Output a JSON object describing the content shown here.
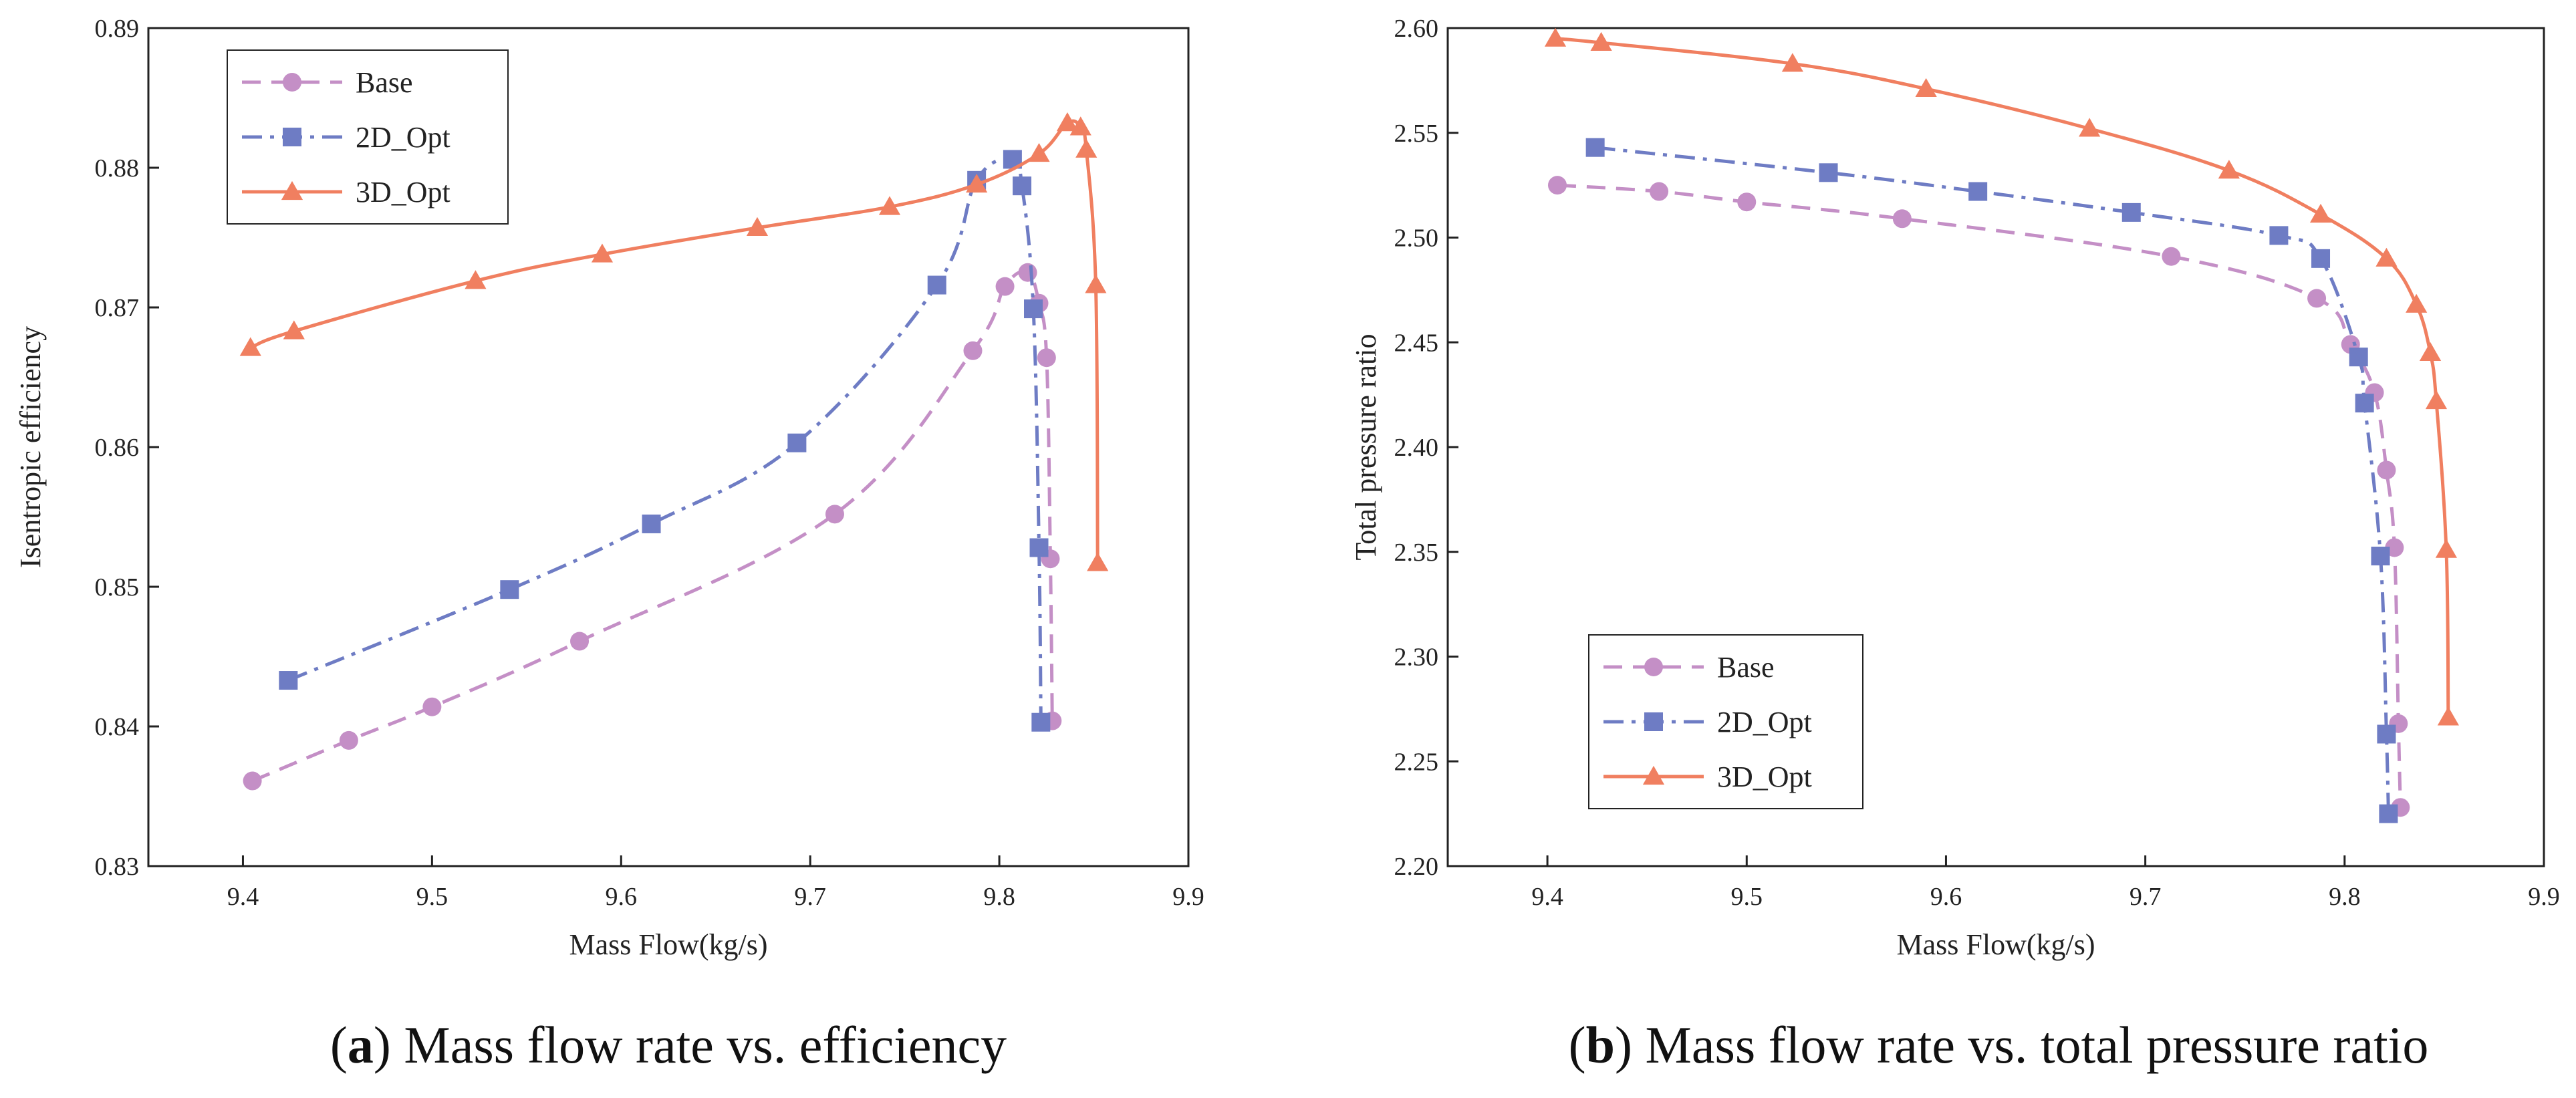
{
  "chart_data": [
    {
      "type": "line",
      "caption_letter": "a",
      "caption_open": "(",
      "caption_close": ")",
      "caption_text": " Mass flow rate vs. efficiency",
      "xlabel": "Mass Flow(kg/s)",
      "ylabel": "Isentropic efficiency",
      "xlim": [
        9.35,
        9.9
      ],
      "ylim": [
        0.83,
        0.89
      ],
      "x_ticks": [
        "9.4",
        "9.5",
        "9.6",
        "9.7",
        "9.8",
        "9.9"
      ],
      "y_ticks": [
        "0.83",
        "0.84",
        "0.85",
        "0.86",
        "0.87",
        "0.88",
        "0.89"
      ],
      "legend_position": "top-left",
      "series": [
        {
          "name": "Base",
          "color": "#c48fc6",
          "marker": "circle",
          "dash": "dashed",
          "x": [
            9.405,
            9.456,
            9.5,
            9.578,
            9.713,
            9.786,
            9.803,
            9.815,
            9.821,
            9.825,
            9.827,
            9.828
          ],
          "y": [
            0.8361,
            0.839,
            0.8414,
            0.8461,
            0.8552,
            0.8669,
            0.8715,
            0.8725,
            0.8703,
            0.8664,
            0.852,
            0.8404
          ]
        },
        {
          "name": "2D_Opt",
          "color": "#6e7cc4",
          "marker": "square",
          "dash": "dashdot",
          "x": [
            9.424,
            9.541,
            9.616,
            9.693,
            9.767,
            9.788,
            9.807,
            9.812,
            9.818,
            9.821,
            9.822
          ],
          "y": [
            0.8433,
            0.8498,
            0.8545,
            0.8603,
            0.8716,
            0.8791,
            0.8806,
            0.8787,
            0.8699,
            0.8528,
            0.8403
          ]
        },
        {
          "name": "3D_Opt",
          "color": "#f07f60",
          "marker": "triangle",
          "dash": "solid",
          "x": [
            9.404,
            9.427,
            9.523,
            9.59,
            9.672,
            9.742,
            9.788,
            9.821,
            9.836,
            9.843,
            9.846,
            9.851,
            9.852
          ],
          "y": [
            0.8671,
            0.8683,
            0.8719,
            0.8738,
            0.8757,
            0.8772,
            0.8788,
            0.881,
            0.8832,
            0.8829,
            0.8813,
            0.8716,
            0.8517
          ]
        }
      ]
    },
    {
      "type": "line",
      "caption_letter": "b",
      "caption_open": "(",
      "caption_close": ")",
      "caption_text": " Mass flow rate vs. total pressure ratio",
      "xlabel": "Mass Flow(kg/s)",
      "ylabel": "Total pressure ratio",
      "xlim": [
        9.35,
        9.9
      ],
      "ylim": [
        2.2,
        2.6
      ],
      "x_ticks": [
        "9.4",
        "9.5",
        "9.6",
        "9.7",
        "9.8",
        "9.9"
      ],
      "y_ticks": [
        "2.20",
        "2.25",
        "2.30",
        "2.35",
        "2.40",
        "2.45",
        "2.50",
        "2.55",
        "2.60"
      ],
      "legend_position": "bottom-left",
      "series": [
        {
          "name": "Base",
          "color": "#c48fc6",
          "marker": "circle",
          "dash": "dashed",
          "x": [
            9.405,
            9.456,
            9.5,
            9.578,
            9.713,
            9.786,
            9.803,
            9.815,
            9.821,
            9.825,
            9.827,
            9.828
          ],
          "y": [
            2.525,
            2.522,
            2.517,
            2.509,
            2.491,
            2.471,
            2.449,
            2.426,
            2.389,
            2.352,
            2.268,
            2.228
          ]
        },
        {
          "name": "2D_Opt",
          "color": "#6e7cc4",
          "marker": "square",
          "dash": "dashdot",
          "x": [
            9.424,
            9.541,
            9.616,
            9.693,
            9.767,
            9.788,
            9.807,
            9.81,
            9.818,
            9.821,
            9.822
          ],
          "y": [
            2.543,
            2.531,
            2.522,
            2.512,
            2.501,
            2.49,
            2.443,
            2.421,
            2.348,
            2.263,
            2.225
          ]
        },
        {
          "name": "3D_Opt",
          "color": "#f07f60",
          "marker": "triangle",
          "dash": "solid",
          "x": [
            9.404,
            9.427,
            9.523,
            9.59,
            9.672,
            9.742,
            9.788,
            9.821,
            9.836,
            9.843,
            9.846,
            9.851,
            9.852
          ],
          "y": [
            2.595,
            2.593,
            2.583,
            2.571,
            2.552,
            2.532,
            2.511,
            2.49,
            2.468,
            2.445,
            2.422,
            2.351,
            2.271
          ]
        }
      ]
    }
  ]
}
